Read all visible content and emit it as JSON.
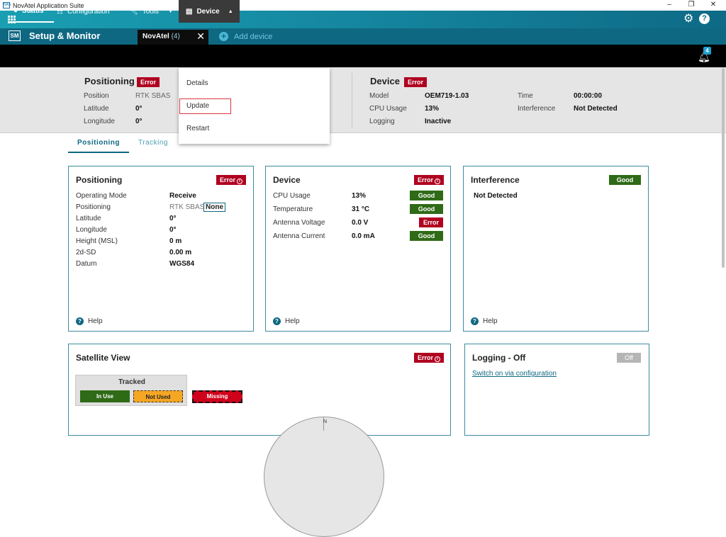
{
  "window": {
    "app_icon_text": "NAS",
    "title": "NovAtel Application Suite",
    "min": "–",
    "restore": "❐",
    "close": "✕"
  },
  "banner": {
    "settings_icon": "gear-icon",
    "help_icon": "help-icon",
    "help_glyph": "?"
  },
  "appbar": {
    "badge": "SM",
    "title": "Setup & Monitor",
    "tab_label": "NovAtel",
    "tab_count": "(4)",
    "add_device": "Add device"
  },
  "nav": {
    "status": "Status",
    "configuration": "Configuration",
    "tools": "Tools",
    "device": "Device"
  },
  "notifications": {
    "count": "4"
  },
  "summary": {
    "positioning": {
      "title": "Positioning",
      "status": "Error",
      "position_label": "Position",
      "position_value": "RTK  SBAS",
      "latitude_label": "Latitude",
      "latitude_value": "0°",
      "longitude_label": "Longitude",
      "longitude_value": "0°"
    },
    "device": {
      "title": "Device",
      "status": "Error",
      "model_label": "Model",
      "model_value": "OEM719-1.03",
      "cpu_label": "CPU Usage",
      "cpu_value": "13%",
      "logging_label": "Logging",
      "logging_value": "Inactive",
      "time_label": "Time",
      "time_value": "00:00:00",
      "interference_label": "Interference",
      "interference_value": "Not Detected"
    }
  },
  "dropdown": {
    "items": [
      "Details",
      "Update",
      "Restart"
    ]
  },
  "subtabs": [
    "Positioning",
    "Tracking"
  ],
  "cards": {
    "positioning": {
      "title": "Positioning",
      "status": "Error",
      "rows": [
        {
          "label": "Operating Mode",
          "value": "Receive"
        },
        {
          "label": "Positioning",
          "value": "RTK SBAS",
          "extra": "None"
        },
        {
          "label": "Latitude",
          "value": "0°"
        },
        {
          "label": "Longitude",
          "value": "0°"
        },
        {
          "label": "Height (MSL)",
          "value": "0 m"
        },
        {
          "label": "2d-SD",
          "value": "0.00 m"
        },
        {
          "label": "Datum",
          "value": "WGS84"
        }
      ],
      "help": "Help"
    },
    "device": {
      "title": "Device",
      "status": "Error",
      "rows": [
        {
          "label": "CPU Usage",
          "value": "13%",
          "status": "Good"
        },
        {
          "label": "Temperature",
          "value": "31 °C",
          "status": "Good"
        },
        {
          "label": "Antenna Voltage",
          "value": "0.0 V",
          "status": "Error"
        },
        {
          "label": "Antenna Current",
          "value": "0.0 mA",
          "status": "Good"
        }
      ],
      "help": "Help"
    },
    "interference": {
      "title": "Interference",
      "status": "Good",
      "value": "Not Detected",
      "help": "Help"
    },
    "satellite": {
      "title": "Satellite View",
      "status": "Error",
      "legend_title": "Tracked",
      "in_use": "In Use",
      "not_used": "Not Used",
      "missing": "Missing",
      "north": "N"
    },
    "logging": {
      "title": "Logging - Off",
      "status": "Off",
      "link": "Switch on via configuration"
    }
  },
  "colors": {
    "error": "#b00020",
    "good": "#2f6a17",
    "accent": "#0f6882",
    "not_used": "#f5a623",
    "missing": "#d0021b"
  }
}
